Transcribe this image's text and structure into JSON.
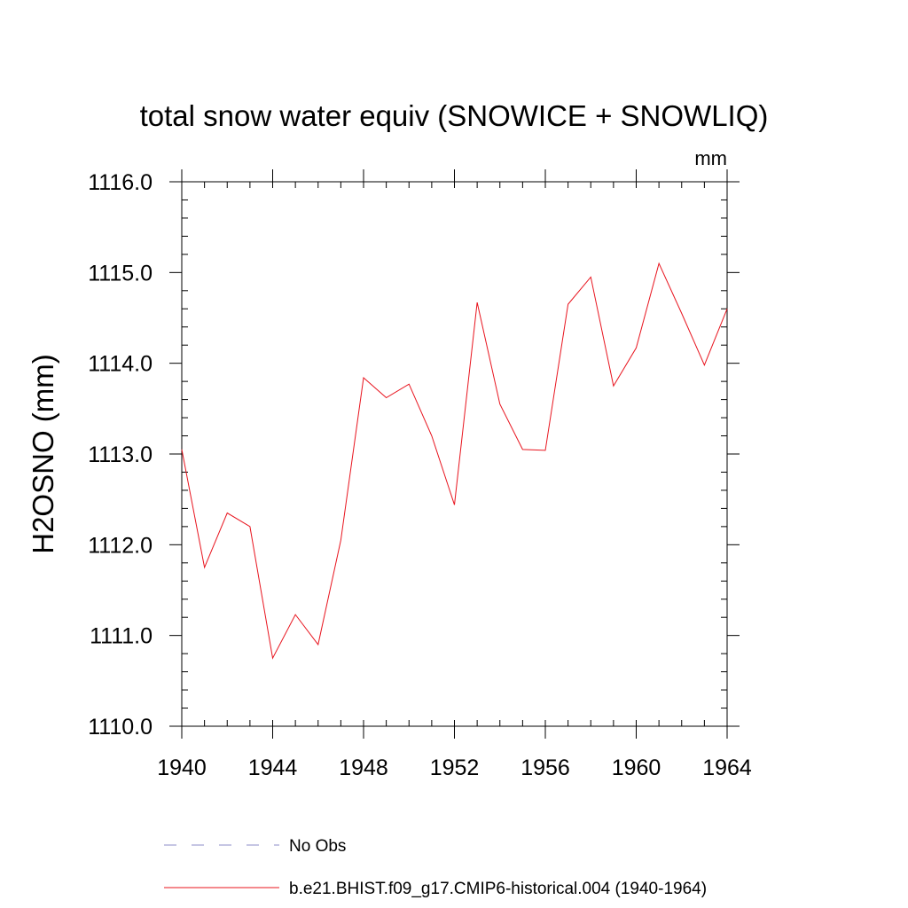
{
  "chart_data": {
    "type": "line",
    "title": "total snow water equiv (SNOWICE + SNOWLIQ)",
    "units_label": "mm",
    "xlabel": "",
    "ylabel": "H2OSNO  (mm)",
    "xlim": [
      1940,
      1964
    ],
    "ylim": [
      1110.0,
      1116.0
    ],
    "x_ticks": [
      "1940",
      "1944",
      "1948",
      "1952",
      "1956",
      "1960",
      "1964"
    ],
    "y_ticks": [
      "1110.0",
      "1111.0",
      "1112.0",
      "1113.0",
      "1114.0",
      "1115.0",
      "1116.0"
    ],
    "grid": false,
    "legend_position": "bottom",
    "series": [
      {
        "name": "b.e21.BHIST.f09_g17.CMIP6-historical.004 (1940-1964)",
        "color": "#e8141e",
        "line_style": "solid",
        "x": [
          1940,
          1941,
          1942,
          1943,
          1944,
          1945,
          1946,
          1947,
          1948,
          1949,
          1950,
          1951,
          1952,
          1953,
          1954,
          1955,
          1956,
          1957,
          1958,
          1959,
          1960,
          1961,
          1962,
          1963,
          1964
        ],
        "values": [
          1113.05,
          1111.75,
          1112.35,
          1112.2,
          1110.75,
          1111.23,
          1110.9,
          1112.05,
          1113.84,
          1113.62,
          1113.77,
          1113.2,
          1112.44,
          1114.67,
          1113.55,
          1113.05,
          1113.04,
          1114.65,
          1114.95,
          1113.75,
          1114.17,
          1115.1,
          1114.55,
          1113.98,
          1114.6
        ]
      }
    ],
    "legend": [
      {
        "label": "No Obs",
        "color": "#8c8cc8",
        "line_style": "dashed"
      },
      {
        "label": "b.e21.BHIST.f09_g17.CMIP6-historical.004 (1940-1964)",
        "color": "#e8141e",
        "line_style": "solid"
      }
    ]
  }
}
